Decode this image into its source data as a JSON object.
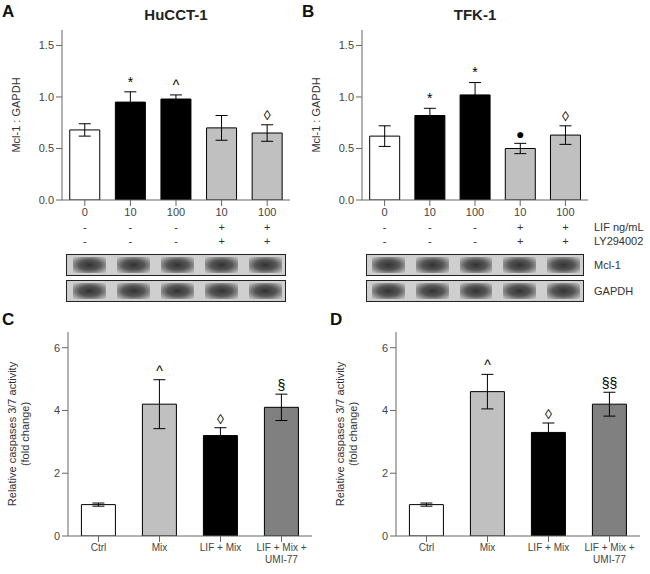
{
  "chart_data": [
    {
      "type": "bar",
      "label": "A",
      "title": "HuCCT-1",
      "ylabel": "Mcl-1 : GAPDH",
      "categories": [
        "0",
        "10",
        "100",
        "10",
        "100"
      ],
      "values": [
        0.68,
        0.95,
        0.98,
        0.7,
        0.65
      ],
      "errors": [
        0.06,
        0.1,
        0.04,
        0.12,
        0.08
      ],
      "colors": [
        "white",
        "black",
        "black",
        "#c0c0c0",
        "#c0c0c0"
      ],
      "ylim": [
        0,
        1.65
      ],
      "yticks": [
        {
          "value": 0,
          "label": "0.0"
        },
        {
          "value": 0.5,
          "label": "0.5"
        },
        {
          "value": 1.0,
          "label": "1.0"
        },
        {
          "value": 1.5,
          "label": "1.5"
        }
      ],
      "annotations": [
        null,
        "*",
        "^",
        null,
        "◊"
      ],
      "annotation_y": [
        null,
        1.08,
        1.05,
        null,
        0.76
      ],
      "rows": [
        {
          "labels": [
            "-",
            "-",
            "-",
            "+",
            "+"
          ]
        },
        {
          "labels": [
            "-",
            "-",
            "-",
            "+",
            "+"
          ]
        }
      ],
      "grid": false
    },
    {
      "type": "bar",
      "label": "B",
      "title": "TFK-1",
      "ylabel": "Mcl-1 : GAPDH",
      "categories": [
        "0",
        "10",
        "100",
        "10",
        "100"
      ],
      "values": [
        0.62,
        0.82,
        1.02,
        0.5,
        0.63
      ],
      "errors": [
        0.1,
        0.07,
        0.12,
        0.05,
        0.09
      ],
      "colors": [
        "white",
        "black",
        "black",
        "#c0c0c0",
        "#c0c0c0"
      ],
      "ylim": [
        0,
        1.65
      ],
      "yticks": [
        {
          "value": 0,
          "label": "0.0"
        },
        {
          "value": 0.5,
          "label": "0.5"
        },
        {
          "value": 1.0,
          "label": "1.0"
        },
        {
          "value": 1.5,
          "label": "1.5"
        }
      ],
      "annotations": [
        null,
        "*",
        "*",
        "●",
        "◊"
      ],
      "annotation_y": [
        null,
        0.92,
        1.17,
        0.57,
        0.75
      ],
      "rows": [
        {
          "name": "LIF ng/mL",
          "labels": [
            "-",
            "-",
            "-",
            "+",
            "+"
          ]
        },
        {
          "name": "LY294002",
          "labels": [
            "-",
            "-",
            "-",
            "+",
            "+"
          ]
        }
      ],
      "blot_labels": [
        "Mcl-1",
        "GAPDH"
      ],
      "grid": false
    },
    {
      "type": "bar",
      "label": "C",
      "ylabel": "Relative caspases 3/7 activity\n(fold change)",
      "categories": [
        "Ctrl",
        "Mix",
        "LIF + Mix",
        "LIF + Mix +\nUMI-77"
      ],
      "values": [
        1.0,
        4.2,
        3.2,
        4.1
      ],
      "errors": [
        0.05,
        0.78,
        0.25,
        0.42
      ],
      "colors": [
        "white",
        "#c0c0c0",
        "black",
        "#808080"
      ],
      "ylim": [
        0,
        6.5
      ],
      "yticks": [
        0,
        2,
        4,
        6
      ],
      "annotations": [
        null,
        "^",
        "◊",
        "§"
      ],
      "annotation_y": [
        null,
        5.05,
        3.52,
        4.58
      ],
      "grid": false
    },
    {
      "type": "bar",
      "label": "D",
      "ylabel": "Relative caspases 3/7 activity\n(fold change)",
      "categories": [
        "Ctrl",
        "Mix",
        "LIF + Mix",
        "LIF + Mix +\nUMI-77"
      ],
      "values": [
        1.0,
        4.6,
        3.3,
        4.2
      ],
      "errors": [
        0.05,
        0.55,
        0.3,
        0.38
      ],
      "colors": [
        "white",
        "#c0c0c0",
        "black",
        "#808080"
      ],
      "ylim": [
        0,
        6.5
      ],
      "yticks": [
        0,
        2,
        4,
        6
      ],
      "annotations": [
        null,
        "^",
        "◊",
        "§§"
      ],
      "annotation_y": [
        null,
        5.22,
        3.65,
        4.65
      ],
      "grid": false
    }
  ]
}
